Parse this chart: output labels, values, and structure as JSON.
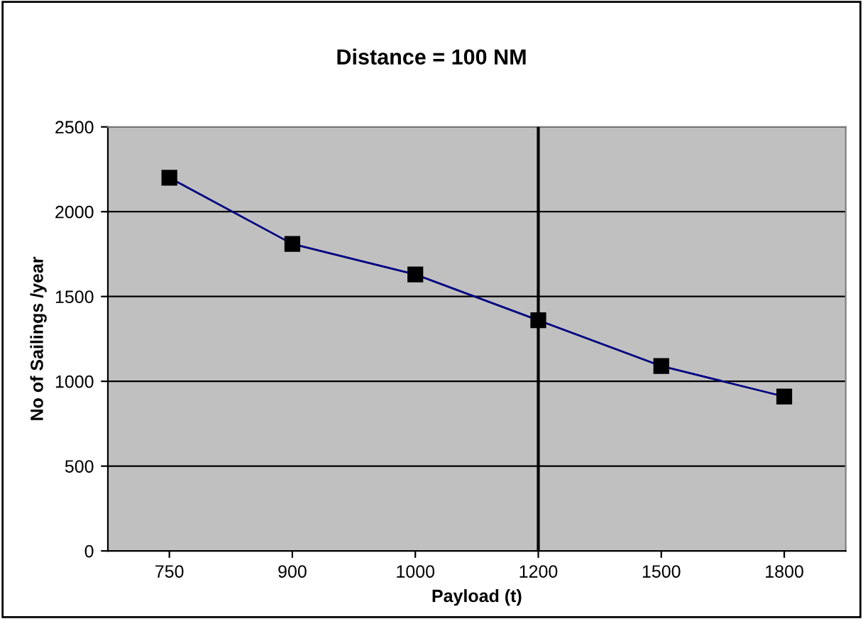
{
  "chart_data": {
    "type": "line",
    "title": "Distance = 100 NM",
    "xlabel": "Payload (t)",
    "ylabel": "No of Sailings /year",
    "categories": [
      "750",
      "900",
      "1000",
      "1200",
      "1500",
      "1800"
    ],
    "series": [
      {
        "color": "#000080",
        "values": [
          2200,
          1810,
          1630,
          1360,
          1090,
          910
        ]
      }
    ],
    "ylim": [
      0,
      2500
    ],
    "yticks": [
      0,
      500,
      1000,
      1500,
      2000,
      2500
    ],
    "grid": "y",
    "marker": "square",
    "line_style": "solid",
    "legend": false,
    "ref_lines": [
      {
        "axis": "x",
        "value": "1200",
        "color": "#000000"
      }
    ]
  }
}
